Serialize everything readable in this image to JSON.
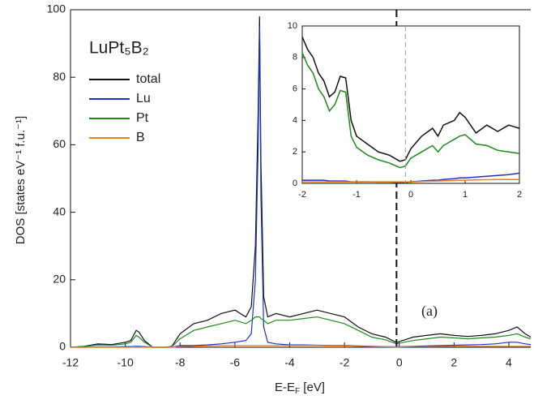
{
  "chart_data": [
    {
      "type": "line",
      "title": "LuPt₅B₂",
      "xlabel": "E-E",
      "xlabel_sub": "F",
      "xlabel_unit": " [eV]",
      "ylabel": "DOS [states eV⁻¹ f.u.⁻¹]",
      "annotation": "(a)",
      "xlim": [
        -12,
        4.8
      ],
      "xticks": [
        -12,
        -10,
        -8,
        -6,
        -4,
        -2,
        0,
        2,
        4
      ],
      "ylim": [
        0,
        100
      ],
      "yticks": [
        0,
        20,
        40,
        60,
        80,
        100
      ],
      "vline": -0.1,
      "x": [
        -12,
        -11.5,
        -11,
        -10.5,
        -10,
        -9.8,
        -9.6,
        -9.5,
        -9.3,
        -9,
        -8.5,
        -8.3,
        -8,
        -7.5,
        -7,
        -6.5,
        -6,
        -5.6,
        -5.4,
        -5.25,
        -5.15,
        -5.1,
        -5.05,
        -4.95,
        -4.8,
        -4.5,
        -4,
        -3.5,
        -3,
        -2.5,
        -2,
        -1.5,
        -1,
        -0.5,
        -0.1,
        0.5,
        1,
        1.5,
        2,
        2.5,
        3,
        3.5,
        4,
        4.3,
        4.6,
        4.8
      ],
      "series": [
        {
          "name": "total",
          "color": "#111111",
          "values": [
            0,
            0.3,
            1,
            0.8,
            1.5,
            2,
            5,
            4.5,
            2,
            0,
            0,
            0.3,
            4,
            7,
            8,
            10,
            11,
            9,
            12,
            30,
            70,
            98,
            55,
            15,
            9,
            10,
            9,
            10,
            11,
            10,
            9,
            6,
            4,
            3,
            1.4,
            3,
            3.5,
            4,
            3.5,
            3.2,
            3.5,
            4,
            5,
            6,
            4,
            3
          ]
        },
        {
          "name": "Lu",
          "color": "#1f2fd0",
          "values": [
            0,
            0,
            0.1,
            0.1,
            0.2,
            0.2,
            0.3,
            0.3,
            0.2,
            0,
            0,
            0,
            0.5,
            0.5,
            0.7,
            1,
            1.5,
            2,
            4,
            20,
            60,
            95,
            45,
            6,
            1.5,
            1,
            0.7,
            0.7,
            0.6,
            0.5,
            0.5,
            0.4,
            0.3,
            0.2,
            0.15,
            0.3,
            0.4,
            0.5,
            0.6,
            0.7,
            0.8,
            1,
            1.5,
            1.5,
            1,
            0.8
          ]
        },
        {
          "name": "Pt",
          "color": "#1e8a1e",
          "values": [
            0,
            0.2,
            0.7,
            0.6,
            1,
            1.5,
            3.5,
            3,
            1.5,
            0,
            0,
            0.2,
            2.5,
            5,
            6,
            7,
            8,
            7,
            8,
            9,
            9,
            9,
            8.5,
            8,
            7,
            8,
            8,
            8.5,
            9,
            8,
            7,
            5,
            3,
            2.2,
            1,
            2,
            2.5,
            3,
            2.8,
            2.5,
            2.8,
            3,
            3.5,
            4,
            3,
            2.5
          ]
        },
        {
          "name": "B",
          "color": "#f08010",
          "values": [
            0,
            0,
            0,
            0,
            0,
            0,
            0.1,
            0.1,
            0,
            0,
            0,
            0,
            0.2,
            0.3,
            0.4,
            0.5,
            0.5,
            0.5,
            0.5,
            0.5,
            0.5,
            0.5,
            0.5,
            0.5,
            0.5,
            0.5,
            0.5,
            0.5,
            0.5,
            0.4,
            0.4,
            0.3,
            0.2,
            0.15,
            0.1,
            0.2,
            0.2,
            0.25,
            0.3,
            0.3,
            0.3,
            0.3,
            0.3,
            0.3,
            0.3,
            0.3
          ]
        }
      ]
    },
    {
      "type": "line",
      "xlim": [
        -2,
        2
      ],
      "xticks": [
        -2,
        -1,
        0,
        1,
        2
      ],
      "ylim": [
        0,
        10
      ],
      "yticks": [
        0,
        2,
        4,
        6,
        8,
        10
      ],
      "vline": -0.1,
      "x": [
        -2,
        -1.9,
        -1.8,
        -1.7,
        -1.6,
        -1.5,
        -1.4,
        -1.3,
        -1.2,
        -1.1,
        -1,
        -0.8,
        -0.6,
        -0.4,
        -0.2,
        -0.1,
        0,
        0.2,
        0.4,
        0.5,
        0.6,
        0.8,
        0.9,
        1,
        1.2,
        1.4,
        1.6,
        1.8,
        2
      ],
      "series": [
        {
          "name": "total",
          "color": "#111111",
          "values": [
            9.3,
            8.5,
            8,
            7,
            6.5,
            5.5,
            5.8,
            6.8,
            6.7,
            4,
            3,
            2.5,
            2,
            1.8,
            1.4,
            1.5,
            2.2,
            3,
            3.5,
            3,
            3.7,
            4,
            4.5,
            4.2,
            3.2,
            3.7,
            3.3,
            3.7,
            3.5
          ]
        },
        {
          "name": "Lu",
          "color": "#1f2fd0",
          "values": [
            0.2,
            0.2,
            0.2,
            0.2,
            0.2,
            0.15,
            0.15,
            0.15,
            0.15,
            0.1,
            0.1,
            0.1,
            0.08,
            0.08,
            0.05,
            0.05,
            0.1,
            0.15,
            0.2,
            0.2,
            0.25,
            0.3,
            0.35,
            0.35,
            0.4,
            0.45,
            0.5,
            0.55,
            0.65
          ]
        },
        {
          "name": "Pt",
          "color": "#1e8a1e",
          "values": [
            8.3,
            7.5,
            7,
            6,
            5.5,
            4.6,
            5,
            5.9,
            5.8,
            3,
            2.3,
            1.8,
            1.5,
            1.3,
            1,
            1.1,
            1.6,
            2,
            2.4,
            2,
            2.4,
            2.8,
            3,
            3.1,
            2.5,
            2.4,
            2.1,
            2.0,
            1.9
          ]
        },
        {
          "name": "B",
          "color": "#f08010",
          "values": [
            0.1,
            0.1,
            0.1,
            0.1,
            0.1,
            0.1,
            0.1,
            0.1,
            0.1,
            0.1,
            0.1,
            0.1,
            0.1,
            0.1,
            0.1,
            0.1,
            0.1,
            0.12,
            0.14,
            0.15,
            0.16,
            0.18,
            0.2,
            0.2,
            0.22,
            0.23,
            0.24,
            0.25,
            0.25
          ]
        }
      ]
    }
  ]
}
